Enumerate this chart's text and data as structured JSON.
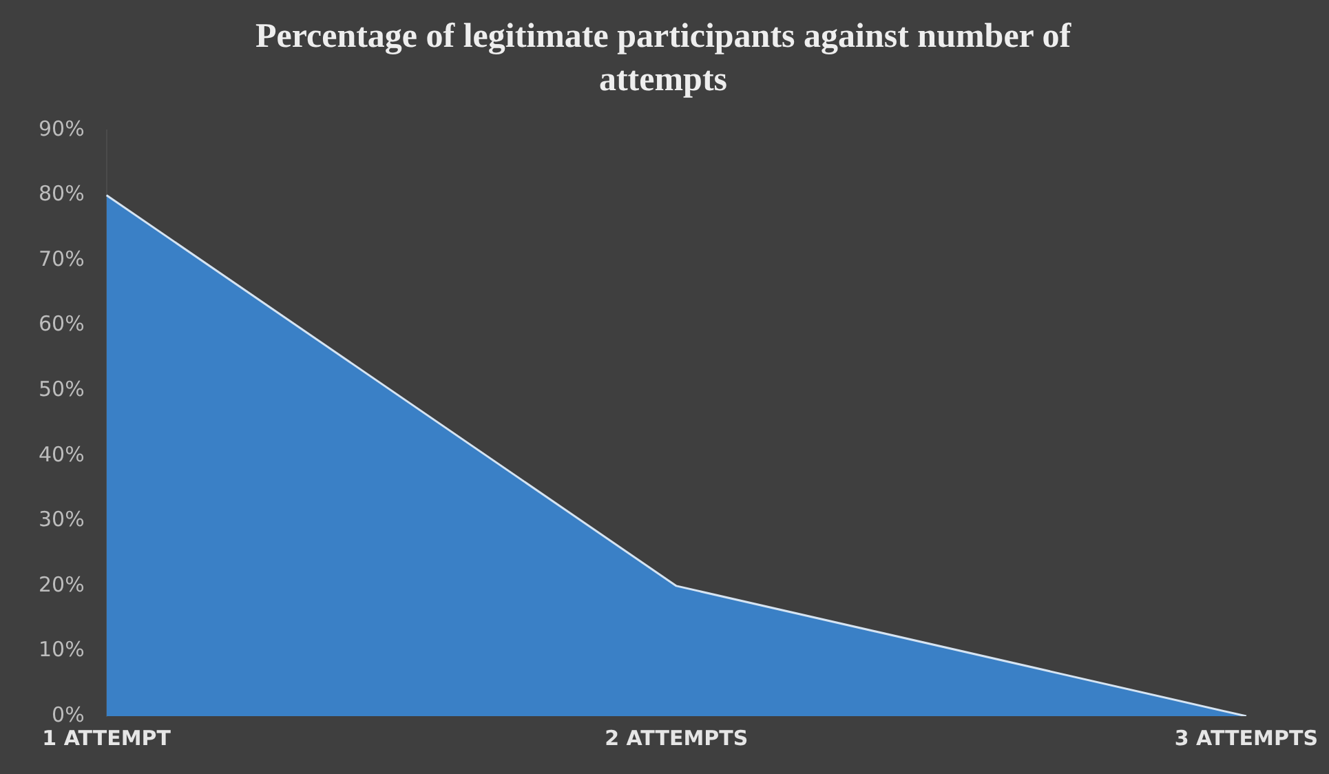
{
  "chart_data": {
    "type": "area",
    "title": "Percentage of legitimate participants against number of attempts",
    "categories": [
      "1 ATTEMPT",
      "2 ATTEMPTS",
      "3 ATTEMPTS"
    ],
    "series": [
      {
        "color": "#3a80c6",
        "values": [
          80,
          20,
          0
        ]
      }
    ],
    "ylim": [
      0,
      90
    ],
    "yticks": [
      {
        "value": 0,
        "label": "0%"
      },
      {
        "value": 10,
        "label": "10%"
      },
      {
        "value": 20,
        "label": "20%"
      },
      {
        "value": 30,
        "label": "30%"
      },
      {
        "value": 40,
        "label": "40%"
      },
      {
        "value": 50,
        "label": "50%"
      },
      {
        "value": 60,
        "label": "60%"
      },
      {
        "value": 70,
        "label": "70%"
      },
      {
        "value": 80,
        "label": "80%"
      },
      {
        "value": 90,
        "label": "90%"
      }
    ],
    "grid": false,
    "legend": false,
    "marker": "none"
  }
}
